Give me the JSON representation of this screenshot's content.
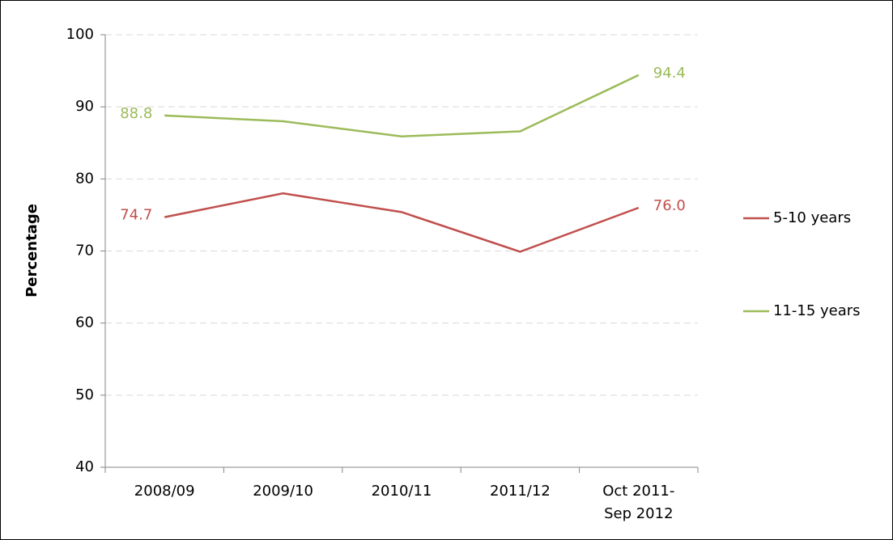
{
  "chart_data": {
    "type": "line",
    "categories": [
      "2008/09",
      "2009/10",
      "2010/11",
      "2011/12",
      "Oct 2011-Sep 2012"
    ],
    "series": [
      {
        "name": "5-10 years",
        "color": "#c0504d",
        "values": [
          74.7,
          78.0,
          75.4,
          69.9,
          76.0
        ],
        "value_labels": [
          "74.7",
          null,
          null,
          null,
          "76.0"
        ]
      },
      {
        "name": "11-15 years",
        "color": "#9bbb59",
        "values": [
          88.8,
          88.0,
          85.9,
          86.6,
          94.4
        ],
        "value_labels": [
          "88.8",
          null,
          null,
          null,
          "94.4"
        ]
      }
    ],
    "y_label": "Percentage",
    "ylim": [
      40,
      100
    ],
    "yticks": [
      40,
      50,
      60,
      70,
      80,
      90,
      100
    ],
    "grid": true,
    "legend": "right"
  }
}
